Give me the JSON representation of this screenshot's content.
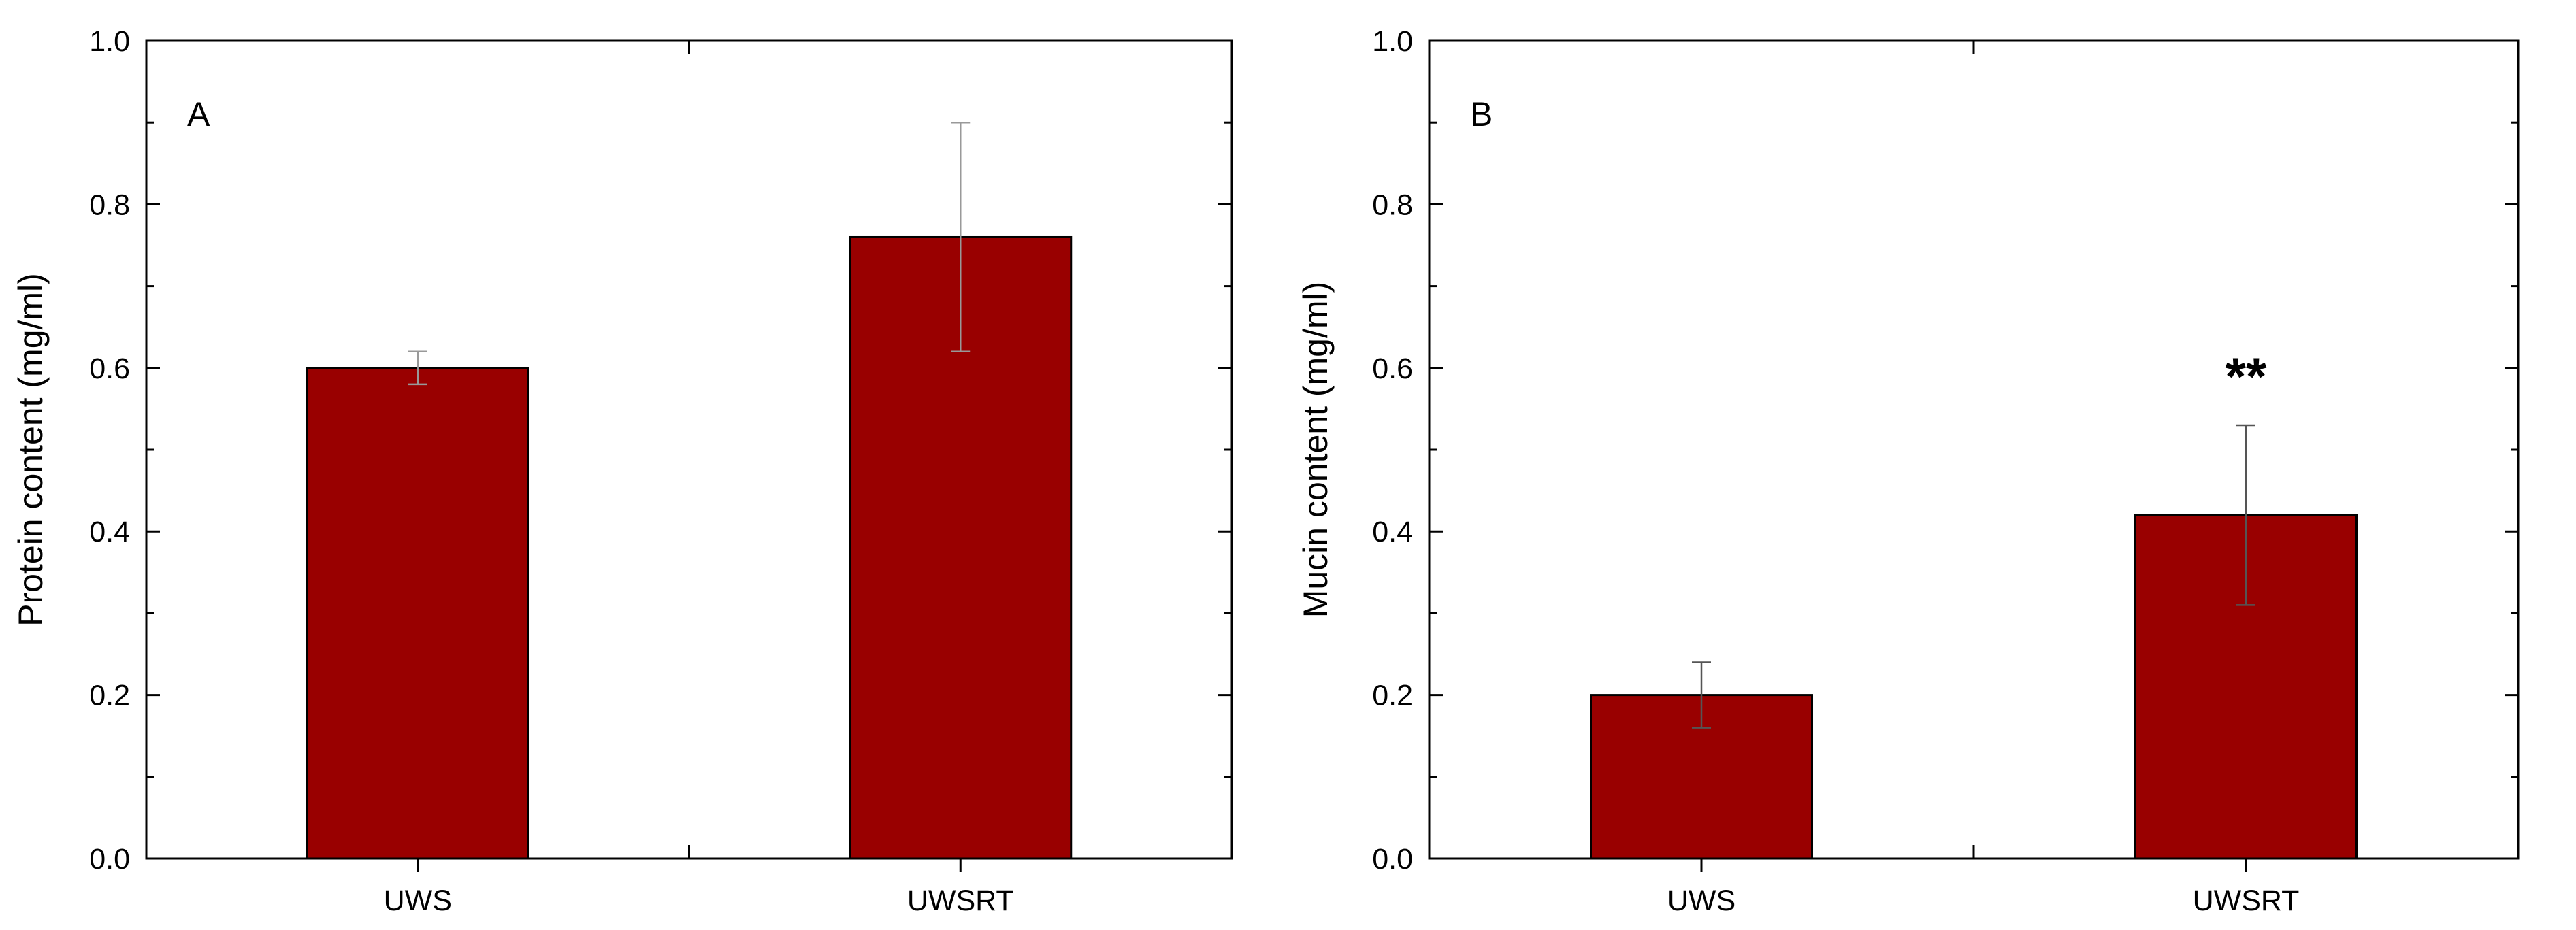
{
  "chart_data": [
    {
      "type": "bar",
      "panel_label": "A",
      "categories": [
        "UWS",
        "UWSRT"
      ],
      "values": [
        0.6,
        0.76
      ],
      "errors": [
        0.02,
        0.14
      ],
      "ylabel": "Protein content (mg/ml)",
      "xlabel": "",
      "ylim": [
        0,
        1.0
      ],
      "yticks": [
        "0.0",
        "0.2",
        "0.4",
        "0.6",
        "0.8",
        "1.0"
      ],
      "significance": [
        "",
        ""
      ],
      "bar_color": "#990000",
      "error_color": "#999999",
      "grid": false
    },
    {
      "type": "bar",
      "panel_label": "B",
      "categories": [
        "UWS",
        "UWSRT"
      ],
      "values": [
        0.2,
        0.42
      ],
      "errors": [
        0.04,
        0.11
      ],
      "ylabel": "Mucin content (mg/ml)",
      "xlabel": "",
      "ylim": [
        0,
        1.0
      ],
      "yticks": [
        "0.0",
        "0.2",
        "0.4",
        "0.6",
        "0.8",
        "1.0"
      ],
      "significance": [
        "",
        "**"
      ],
      "bar_color": "#990000",
      "error_color": "#555555",
      "grid": false
    }
  ]
}
